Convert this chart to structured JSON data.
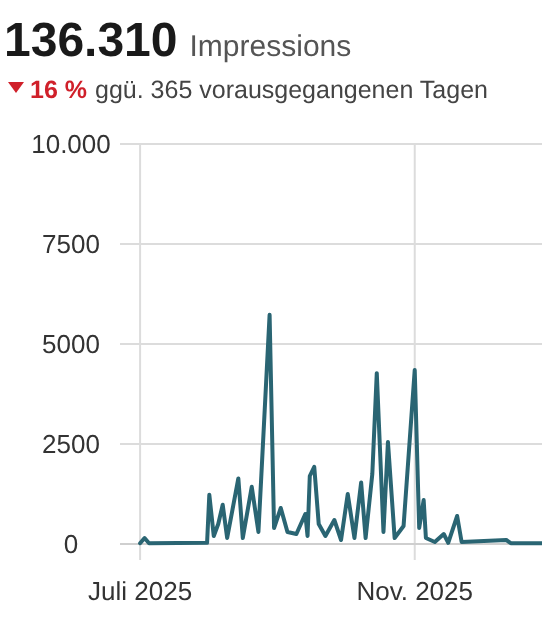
{
  "chart_data": {
    "type": "line",
    "title": "136.310",
    "subtitle": "Impressions",
    "annotations": [
      "16 %",
      "ggü. 365 vorausgegangenen Tagen"
    ],
    "x": [
      "2025-07-01",
      "2025-07-03",
      "2025-07-05",
      "2025-07-31",
      "2025-08-01",
      "2025-08-03",
      "2025-08-05",
      "2025-08-07",
      "2025-08-09",
      "2025-08-14",
      "2025-08-16",
      "2025-08-20",
      "2025-08-23",
      "2025-08-28",
      "2025-08-30",
      "2025-09-02",
      "2025-09-05",
      "2025-09-09",
      "2025-09-13",
      "2025-09-14",
      "2025-09-15",
      "2025-09-17",
      "2025-09-19",
      "2025-09-22",
      "2025-09-26",
      "2025-09-29",
      "2025-10-02",
      "2025-10-05",
      "2025-10-08",
      "2025-10-10",
      "2025-10-13",
      "2025-10-15",
      "2025-10-18",
      "2025-10-20",
      "2025-10-23",
      "2025-10-27",
      "2025-11-01",
      "2025-11-03",
      "2025-11-05",
      "2025-11-06",
      "2025-11-10",
      "2025-11-14",
      "2025-11-16",
      "2025-11-20",
      "2025-11-22",
      "2025-12-12",
      "2025-12-14",
      "2025-12-28"
    ],
    "series": [
      {
        "color": "#2a6573",
        "values": [
          20,
          150,
          20,
          30,
          1230,
          200,
          500,
          980,
          150,
          1640,
          150,
          1430,
          300,
          5730,
          400,
          900,
          300,
          250,
          750,
          200,
          1700,
          1930,
          500,
          200,
          600,
          100,
          1250,
          150,
          1540,
          150,
          1750,
          4270,
          300,
          2550,
          150,
          450,
          4350,
          400,
          1100,
          150,
          50,
          250,
          30,
          700,
          50,
          100,
          20,
          20
        ]
      }
    ],
    "xlim": [
      "2025-06-22",
      "2025-12-28"
    ],
    "xticks": [
      {
        "value": "2025-07-01",
        "label": "Juli 2025"
      },
      {
        "value": "2025-11-01",
        "label": "Nov. 2025"
      }
    ],
    "ylim": [
      0,
      10000
    ],
    "yticks": [
      {
        "value": 0,
        "label": "0"
      },
      {
        "value": 2500,
        "label": "2500"
      },
      {
        "value": 5000,
        "label": "5000"
      },
      {
        "value": 7500,
        "label": "7500"
      },
      {
        "value": 10000,
        "label": "10.000"
      }
    ],
    "grid": true,
    "marker": "none",
    "line_style": "solid"
  }
}
